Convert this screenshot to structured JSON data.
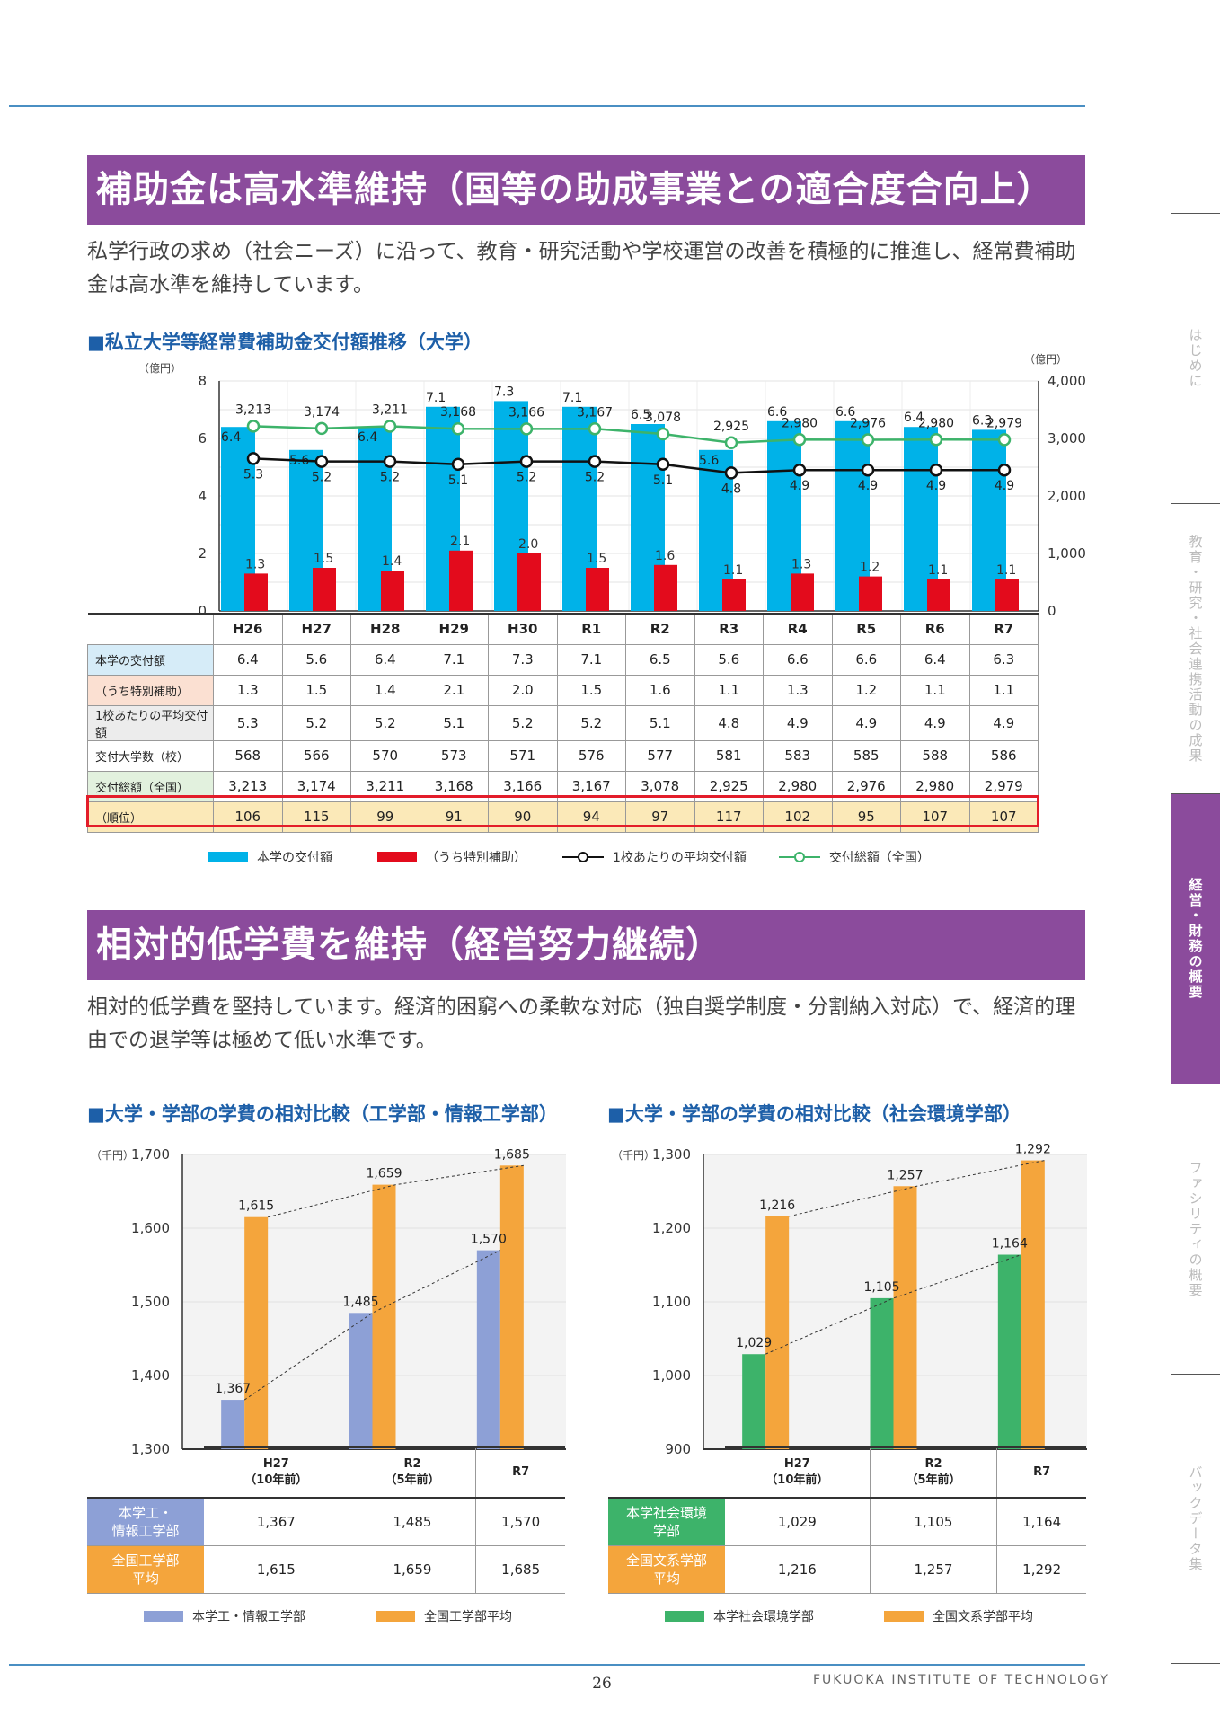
{
  "section1": {
    "title": "補助金は高水準維持（国等の助成事業との適合度合向上）",
    "lead": "私学行政の求め（社会ニーズ）に沿って、教育・研究活動や学校運営の改善を積極的に推進し、経常費補助金は高水準を維持しています。",
    "chart_title": "■私立大学等経常費補助金交付額推移（大学）"
  },
  "section2": {
    "title": "相対的低学費を維持（経営努力継続）",
    "lead": "相対的低学費を堅持しています。経済的困窮への柔軟な対応（独自奨学制度・分割納入対応）で、経済的理由での退学等は極めて低い水準です。",
    "chart1_title": "■大学・学部の学費の相対比較（工学部・情報工学部）",
    "chart2_title": "■大学・学部の学費の相対比較（社会環境学部）"
  },
  "side_tabs": [
    "はじめに",
    "教育・研究・社会連携活動の成果",
    "経営・財務の概要",
    "ファシリティの概要",
    "バックデータ集"
  ],
  "footer": {
    "page": "26",
    "name": "FUKUOKA INSTITUTE OF TECHNOLOGY"
  },
  "colors": {
    "purple": "#8b4b9c",
    "cyan": "#00b2e8",
    "red": "#e30b1c",
    "green": "#3db36a",
    "orange": "#f4a53c",
    "periwinkle": "#8da0d6"
  },
  "chart_data": [
    {
      "type": "bar",
      "categories": [
        "H26",
        "H27",
        "H28",
        "H29",
        "H30",
        "R1",
        "R2",
        "R3",
        "R4",
        "R5",
        "R6",
        "R7"
      ],
      "y_left_unit": "（億円）",
      "y_right_unit": "（億円）",
      "ylim_left": [
        0,
        8
      ],
      "ylim_right": [
        0,
        4000
      ],
      "yticks_left": [
        "0",
        "2",
        "4",
        "6",
        "8"
      ],
      "yticks_right": [
        "0",
        "1,000",
        "2,000",
        "3,000",
        "4,000"
      ],
      "series": [
        {
          "name": "本学の交付額",
          "axis": "left",
          "kind": "bar",
          "values": [
            6.4,
            5.6,
            6.4,
            7.1,
            7.3,
            7.1,
            6.5,
            5.6,
            6.6,
            6.6,
            6.4,
            6.3
          ]
        },
        {
          "name": "（うち特別補助）",
          "axis": "left",
          "kind": "bar",
          "values": [
            1.3,
            1.5,
            1.4,
            2.1,
            2.0,
            1.5,
            1.6,
            1.1,
            1.3,
            1.2,
            1.1,
            1.1
          ]
        },
        {
          "name": "1校あたりの平均交付額",
          "axis": "left",
          "kind": "line",
          "values": [
            5.3,
            5.2,
            5.2,
            5.1,
            5.2,
            5.2,
            5.1,
            4.8,
            4.9,
            4.9,
            4.9,
            4.9
          ]
        },
        {
          "name": "交付総額（全国）",
          "axis": "right",
          "kind": "line",
          "values": [
            3213,
            3174,
            3211,
            3168,
            3166,
            3167,
            3078,
            2925,
            2980,
            2976,
            2980,
            2979
          ]
        }
      ],
      "table": {
        "rows": [
          {
            "label": "本学の交付額",
            "bg": "#d6ecf8",
            "values": [
              "6.4",
              "5.6",
              "6.4",
              "7.1",
              "7.3",
              "7.1",
              "6.5",
              "5.6",
              "6.6",
              "6.6",
              "6.4",
              "6.3"
            ]
          },
          {
            "label": "（うち特別補助）",
            "bg": "#fbe0d2",
            "values": [
              "1.3",
              "1.5",
              "1.4",
              "2.1",
              "2.0",
              "1.5",
              "1.6",
              "1.1",
              "1.3",
              "1.2",
              "1.1",
              "1.1"
            ]
          },
          {
            "label": "1校あたりの平均交付額",
            "bg": "#ececec",
            "values": [
              "5.3",
              "5.2",
              "5.2",
              "5.1",
              "5.2",
              "5.2",
              "5.1",
              "4.8",
              "4.9",
              "4.9",
              "4.9",
              "4.9"
            ]
          },
          {
            "label": "交付大学数（校）",
            "bg": "#ffffff",
            "values": [
              "568",
              "566",
              "570",
              "573",
              "571",
              "576",
              "577",
              "581",
              "583",
              "585",
              "588",
              "586"
            ]
          },
          {
            "label": "交付総額（全国）",
            "bg": "#e2f1de",
            "values": [
              "3,213",
              "3,174",
              "3,211",
              "3,168",
              "3,166",
              "3,167",
              "3,078",
              "2,925",
              "2,980",
              "2,976",
              "2,980",
              "2,979"
            ]
          },
          {
            "label": "（順位）",
            "bg": "#fbe9b8",
            "values": [
              "106",
              "115",
              "99",
              "91",
              "90",
              "94",
              "97",
              "117",
              "102",
              "95",
              "107",
              "107"
            ]
          }
        ]
      },
      "legend": [
        "本学の交付額",
        "（うち特別補助）",
        "1校あたりの平均交付額",
        "交付総額（全国）"
      ]
    },
    {
      "type": "bar",
      "unit": "（千円）",
      "categories": [
        [
          "H27",
          "（10年前）"
        ],
        [
          "R2",
          "（5年前）"
        ],
        [
          "R7",
          ""
        ]
      ],
      "ylim": [
        1300,
        1700
      ],
      "yticks": [
        "1,300",
        "1,400",
        "1,500",
        "1,600",
        "1,700"
      ],
      "series": [
        {
          "name": "本学工・情報工学部",
          "row_label": [
            "本学工・",
            "情報工学部"
          ],
          "color": "#8da0d6",
          "values": [
            1367,
            1485,
            1570
          ],
          "labels": [
            "1,367",
            "1,485",
            "1,570"
          ]
        },
        {
          "name": "全国工学部平均",
          "row_label": [
            "全国工学部",
            "平均"
          ],
          "color": "#f4a53c",
          "values": [
            1615,
            1659,
            1685
          ],
          "labels": [
            "1,615",
            "1,659",
            "1,685"
          ]
        }
      ]
    },
    {
      "type": "bar",
      "unit": "（千円）",
      "categories": [
        [
          "H27",
          "（10年前）"
        ],
        [
          "R2",
          "（5年前）"
        ],
        [
          "R7",
          ""
        ]
      ],
      "ylim": [
        900,
        1300
      ],
      "yticks": [
        "900",
        "1,000",
        "1,100",
        "1,200",
        "1,300"
      ],
      "series": [
        {
          "name": "本学社会環境学部",
          "row_label": [
            "本学社会環境",
            "学部"
          ],
          "color": "#3db36a",
          "values": [
            1029,
            1105,
            1164
          ],
          "labels": [
            "1,029",
            "1,105",
            "1,164"
          ]
        },
        {
          "name": "全国文系学部平均",
          "row_label": [
            "全国文系学部",
            "平均"
          ],
          "color": "#f4a53c",
          "values": [
            1216,
            1257,
            1292
          ],
          "labels": [
            "1,216",
            "1,257",
            "1,292"
          ]
        }
      ]
    }
  ]
}
